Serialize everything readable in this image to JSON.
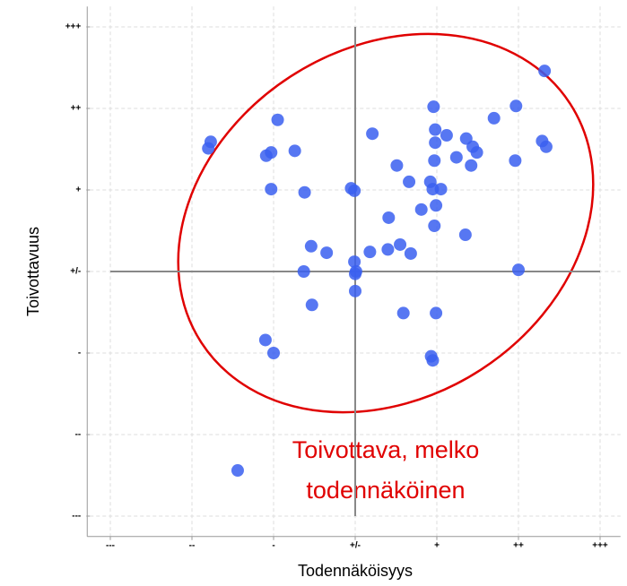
{
  "chart_data": {
    "type": "scatter",
    "x_label": "Todennäköisyys",
    "y_label": "Toivottavuus",
    "annotation": [
      "Toivottava, melko",
      "todennäköinen"
    ],
    "xlim": [
      -3.25,
      3.25
    ],
    "ylim": [
      -3.25,
      3.25
    ],
    "xticks": [
      {
        "value": -3,
        "label": "---"
      },
      {
        "value": -2,
        "label": "--"
      },
      {
        "value": -1,
        "label": "-"
      },
      {
        "value": 0,
        "label": "+/-"
      },
      {
        "value": 1,
        "label": "+"
      },
      {
        "value": 2,
        "label": "++"
      },
      {
        "value": 3,
        "label": "+++"
      }
    ],
    "yticks": [
      {
        "value": -3,
        "label": "---"
      },
      {
        "value": -2,
        "label": "--"
      },
      {
        "value": -1,
        "label": "-"
      },
      {
        "value": 0,
        "label": "+/-"
      },
      {
        "value": 1,
        "label": "+"
      },
      {
        "value": 2,
        "label": "++"
      },
      {
        "value": 3,
        "label": "+++"
      }
    ],
    "grid": true,
    "color": "#3a5ff0",
    "x": [
      2.32,
      1.97,
      0.96,
      1.7,
      -0.95,
      0.98,
      1.12,
      0.21,
      -1.77,
      -1.8,
      1.36,
      0.98,
      -0.74,
      -1.03,
      -1.09,
      1.44,
      1.49,
      2.29,
      2.34,
      1.24,
      0.97,
      1.96,
      1.42,
      0.51,
      0.66,
      0.92,
      -0.05,
      -0.01,
      -1.03,
      -0.62,
      0.95,
      1.05,
      0.99,
      0.81,
      0.41,
      0.97,
      1.35,
      -0.54,
      -0.35,
      0.18,
      0.4,
      0.55,
      0.68,
      -0.01,
      -0.63,
      0.01,
      0.0,
      2.0,
      0.0,
      -0.53,
      0.59,
      0.99,
      -1.1,
      -1.0,
      0.93,
      0.95,
      -1.44
    ],
    "values": [
      2.46,
      2.03,
      2.02,
      1.88,
      1.86,
      1.74,
      1.67,
      1.69,
      1.59,
      1.51,
      1.63,
      1.58,
      1.48,
      1.46,
      1.42,
      1.53,
      1.46,
      1.6,
      1.53,
      1.4,
      1.36,
      1.36,
      1.3,
      1.3,
      1.1,
      1.1,
      1.02,
      0.99,
      1.01,
      0.97,
      1.01,
      1.01,
      0.81,
      0.76,
      0.66,
      0.56,
      0.45,
      0.31,
      0.23,
      0.24,
      0.27,
      0.33,
      0.22,
      0.12,
      0.0,
      0.0,
      -0.03,
      0.02,
      -0.24,
      -0.41,
      -0.51,
      -0.51,
      -0.84,
      -1.0,
      -1.04,
      -1.09,
      -2.44
    ]
  }
}
